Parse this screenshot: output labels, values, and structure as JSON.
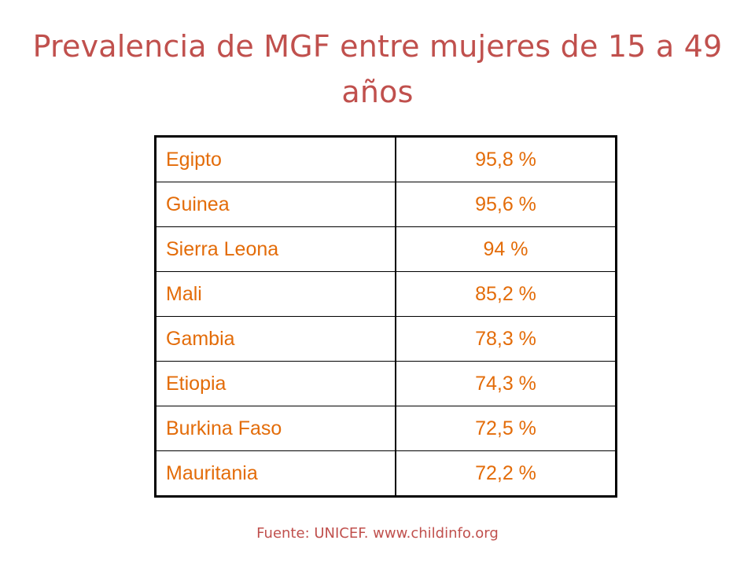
{
  "title": "Prevalencia de MGF entre mujeres de 15 a 49 años",
  "colors": {
    "title": "#C0504D",
    "table_text": "#E36C09",
    "border": "#000000",
    "source": "#C0504D"
  },
  "table": {
    "rows": [
      {
        "country": "Egipto",
        "value": "95,8 %"
      },
      {
        "country": "Guinea",
        "value": "95,6 %"
      },
      {
        "country": "Sierra Leona",
        "value": "94 %"
      },
      {
        "country": "Mali",
        "value": "85,2 %"
      },
      {
        "country": "Gambia",
        "value": "78,3 %"
      },
      {
        "country": "Etiopia",
        "value": "74,3 %"
      },
      {
        "country": "Burkina Faso",
        "value": "72,5 %"
      },
      {
        "country": "Mauritania",
        "value": "72,2 %"
      }
    ]
  },
  "source": "Fuente: UNICEF. www.childinfo.org"
}
